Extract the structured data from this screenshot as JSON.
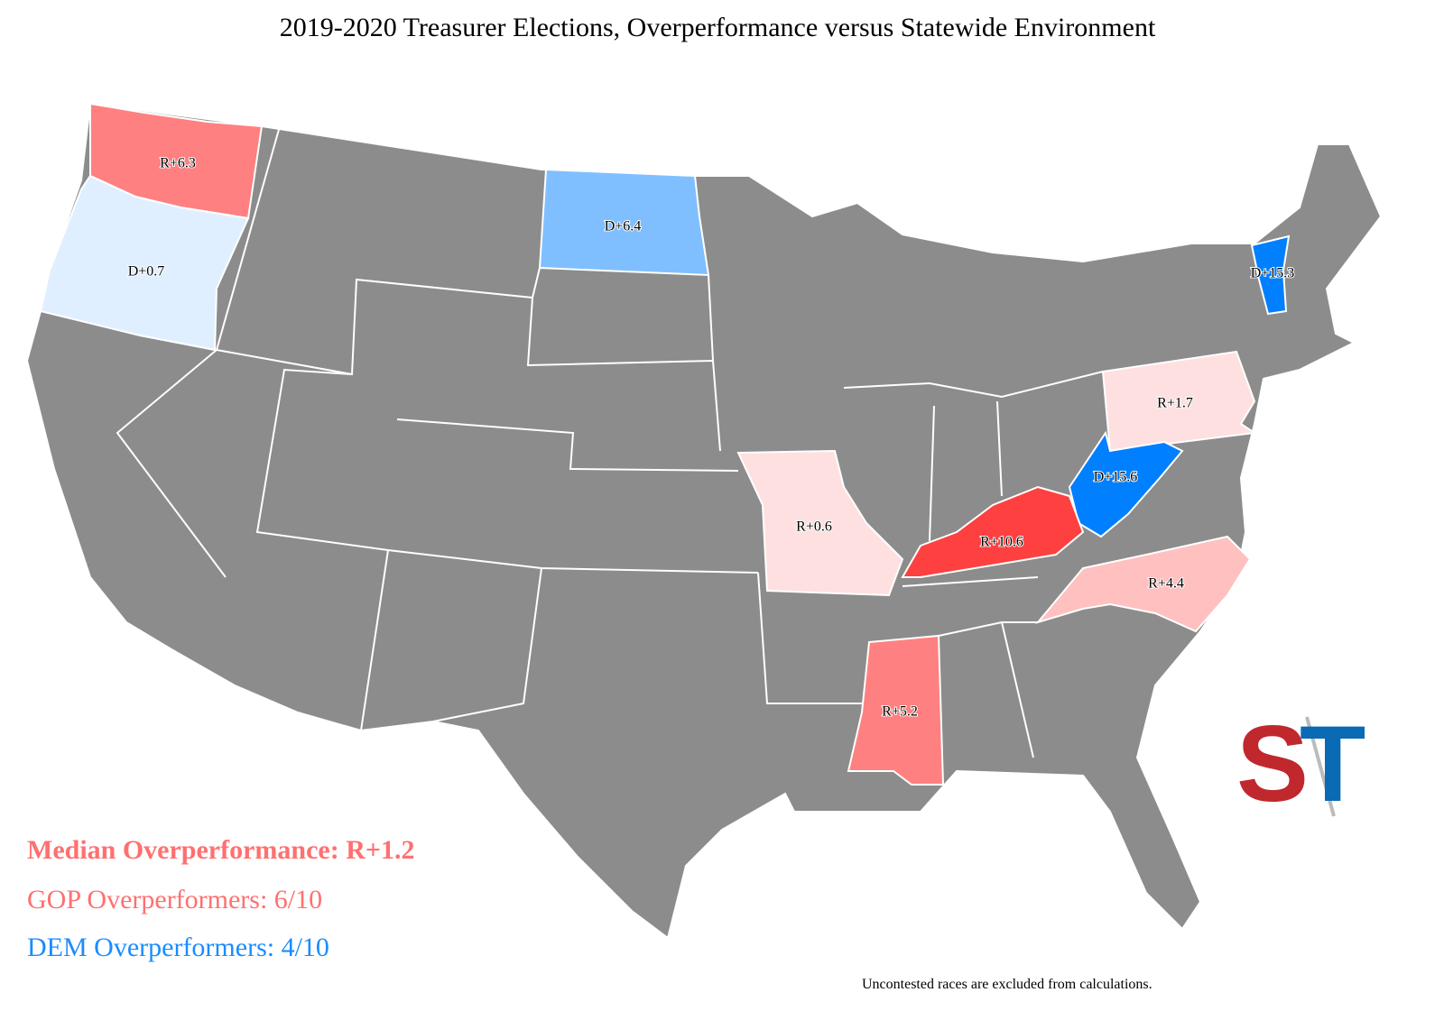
{
  "title": "2019-2020 Treasurer Elections, Overperformance versus Statewide Environment",
  "states": [
    {
      "label": "R+6.3",
      "color": "#ff8080"
    },
    {
      "label": "D+0.7",
      "color": "#e0efff"
    },
    {
      "label": "D+6.4",
      "color": "#80bfff"
    },
    {
      "label": "D+15.3",
      "color": "#0080ff"
    },
    {
      "label": "R+1.7",
      "color": "#ffe0e0"
    },
    {
      "label": "D+15.6",
      "color": "#0080ff"
    },
    {
      "label": "R+10.6",
      "color": "#ff4040"
    },
    {
      "label": "R+0.6",
      "color": "#ffe0e0"
    },
    {
      "label": "R+4.4",
      "color": "#ffc0c0"
    },
    {
      "label": "R+5.2",
      "color": "#ff8080"
    }
  ],
  "summary": {
    "median": "Median Overperformance: R+1.2",
    "gop": "GOP Overperformers: 6/10",
    "dem": "DEM Overperformers: 4/10"
  },
  "logo": {
    "left": "S",
    "right": "T"
  },
  "footnote": "Uncontested races are excluded from calculations."
}
